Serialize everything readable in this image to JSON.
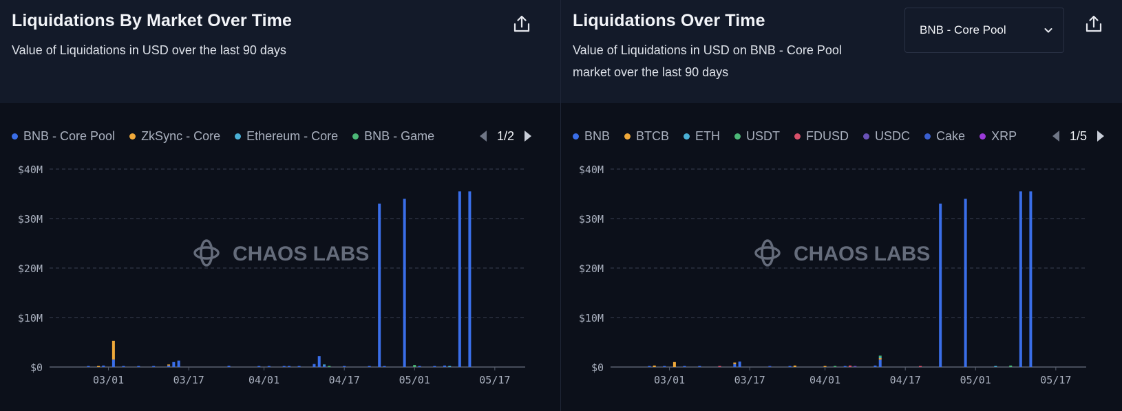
{
  "colors": {
    "bnb_core_pool": "#3a6ee8",
    "zksync_core": "#f0a93a",
    "ethereum_core": "#4ab0d6",
    "bnb_game": "#4cb877",
    "bnb": "#3a6ee8",
    "btcb": "#f0a93a",
    "eth": "#4ab0d6",
    "usdt": "#4cb877",
    "fdusd": "#d8506a",
    "usdc": "#6a52b8",
    "cake": "#3a5fd0",
    "xrp": "#9a3ad8",
    "grid": "#3a4152",
    "axis": "#5a6170",
    "tick_text": "#aab1bf",
    "watermark": "#6f7686"
  },
  "left": {
    "title": "Liquidations By Market Over Time",
    "subtitle": "Value of Liquidations in USD over the last 90 days",
    "export_icon": "share-upload-icon",
    "legend": [
      {
        "label": "BNB - Core Pool",
        "color": "#3a6ee8"
      },
      {
        "label": "ZkSync - Core",
        "color": "#f0a93a"
      },
      {
        "label": "Ethereum - Core",
        "color": "#4ab0d6"
      },
      {
        "label": "BNB - Game",
        "color": "#4cb877"
      }
    ],
    "page": "1/2"
  },
  "right": {
    "title": "Liquidations Over Time",
    "subtitle": "Value of Liquidations in USD on BNB - Core Pool market over the last 90 days",
    "select_value": "BNB - Core Pool",
    "export_icon": "share-upload-icon",
    "legend": [
      {
        "label": "BNB",
        "color": "#3a6ee8"
      },
      {
        "label": "BTCB",
        "color": "#f0a93a"
      },
      {
        "label": "ETH",
        "color": "#4ab0d6"
      },
      {
        "label": "USDT",
        "color": "#4cb877"
      },
      {
        "label": "FDUSD",
        "color": "#d8506a"
      },
      {
        "label": "USDC",
        "color": "#6a52b8"
      },
      {
        "label": "Cake",
        "color": "#3a5fd0"
      },
      {
        "label": "XRP",
        "color": "#9a3ad8"
      }
    ],
    "page": "1/5"
  },
  "watermark": "CHAOS LABS",
  "chart_data": [
    {
      "type": "bar",
      "stacked": true,
      "x_ticks": [
        "03/01",
        "03/17",
        "04/01",
        "04/17",
        "05/01",
        "05/17"
      ],
      "x_tick_day": [
        9,
        25,
        40,
        56,
        70,
        86
      ],
      "x_range_days": [
        0,
        90
      ],
      "y_ticks": [
        "$0",
        "$10M",
        "$20M",
        "$30M",
        "$40M"
      ],
      "ylim": [
        0,
        40
      ],
      "y_unit": "M USD",
      "grid": true,
      "series": [
        {
          "name": "BNB - Core Pool",
          "color": "#3a6ee8",
          "points": [
            [
              5,
              0.15
            ],
            [
              8,
              0.3
            ],
            [
              10,
              1.5
            ],
            [
              12,
              0.2
            ],
            [
              15,
              0.2
            ],
            [
              18,
              0.15
            ],
            [
              21,
              0.3
            ],
            [
              22,
              1.0
            ],
            [
              23,
              1.3
            ],
            [
              33,
              0.25
            ],
            [
              39,
              0.15
            ],
            [
              41,
              0.1
            ],
            [
              44,
              0.2
            ],
            [
              45,
              0.1
            ],
            [
              47,
              0.1
            ],
            [
              50,
              0.6
            ],
            [
              51,
              2.2
            ],
            [
              52,
              0.3
            ],
            [
              56,
              0.1
            ],
            [
              61,
              0.2
            ],
            [
              63,
              33
            ],
            [
              64,
              0.2
            ],
            [
              68,
              34
            ],
            [
              71,
              0.1
            ],
            [
              74,
              0.1
            ],
            [
              76,
              0.3
            ],
            [
              79,
              35.5
            ],
            [
              81,
              35.5
            ]
          ]
        },
        {
          "name": "ZkSync - Core",
          "color": "#f0a93a",
          "points": [
            [
              10,
              3.8
            ],
            [
              7,
              0.2
            ],
            [
              21,
              0.1
            ]
          ]
        },
        {
          "name": "Ethereum - Core",
          "color": "#4ab0d6",
          "points": [
            [
              52,
              0.2
            ],
            [
              77,
              0.1
            ]
          ]
        },
        {
          "name": "BNB - Game",
          "color": "#4cb877",
          "points": [
            [
              53,
              0.15
            ],
            [
              70,
              0.4
            ]
          ]
        }
      ]
    },
    {
      "type": "bar",
      "stacked": true,
      "x_ticks": [
        "03/01",
        "03/17",
        "04/01",
        "04/17",
        "05/01",
        "05/17"
      ],
      "x_tick_day": [
        9,
        25,
        40,
        56,
        70,
        86
      ],
      "x_range_days": [
        0,
        90
      ],
      "y_ticks": [
        "$0",
        "$10M",
        "$20M",
        "$30M",
        "$40M"
      ],
      "ylim": [
        0,
        40
      ],
      "y_unit": "M USD",
      "grid": true,
      "series": [
        {
          "name": "BNB",
          "color": "#3a6ee8",
          "points": [
            [
              5,
              0.1
            ],
            [
              8,
              0.2
            ],
            [
              12,
              0.15
            ],
            [
              15,
              0.1
            ],
            [
              22,
              0.6
            ],
            [
              23,
              1.1
            ],
            [
              33,
              0.1
            ],
            [
              44,
              0.1
            ],
            [
              50,
              0.3
            ],
            [
              51,
              1.5
            ],
            [
              63,
              33
            ],
            [
              68,
              34
            ],
            [
              79,
              35.5
            ],
            [
              81,
              35.5
            ]
          ]
        },
        {
          "name": "BTCB",
          "color": "#f0a93a",
          "points": [
            [
              6,
              0.3
            ],
            [
              10,
              1.0
            ],
            [
              22,
              0.3
            ],
            [
              34,
              0.3
            ],
            [
              40,
              0.1
            ],
            [
              51,
              0.3
            ]
          ]
        },
        {
          "name": "ETH",
          "color": "#4ab0d6",
          "points": [
            [
              51,
              0.2
            ],
            [
              74,
              0.1
            ]
          ]
        },
        {
          "name": "USDT",
          "color": "#4cb877",
          "points": [
            [
              42,
              0.2
            ],
            [
              51,
              0.3
            ],
            [
              77,
              0.3
            ]
          ]
        },
        {
          "name": "FDUSD",
          "color": "#d8506a",
          "points": [
            [
              19,
              0.1
            ],
            [
              45,
              0.3
            ],
            [
              59,
              0.2
            ]
          ]
        },
        {
          "name": "USDC",
          "color": "#6a52b8",
          "points": [
            [
              46,
              0.1
            ]
          ]
        },
        {
          "name": "Cake",
          "color": "#3a5fd0",
          "points": [
            [
              29,
              0.1
            ]
          ]
        },
        {
          "name": "XRP",
          "color": "#9a3ad8",
          "points": []
        }
      ]
    }
  ]
}
